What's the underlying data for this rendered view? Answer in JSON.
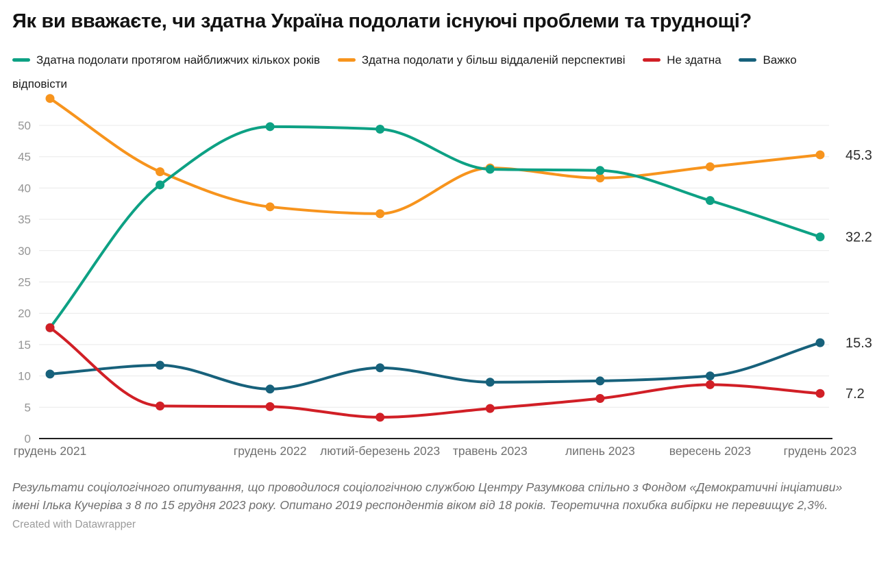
{
  "title": "Як ви вважаєте, чи здатна Україна подолати існуючі проблеми та труднощі?",
  "chart_data": {
    "type": "line",
    "categories": [
      "грудень 2021",
      "",
      "грудень 2022",
      "лютий-березень 2023",
      "травень 2023",
      "липень 2023",
      "вересень 2023",
      "грудень 2023"
    ],
    "series": [
      {
        "name": "Здатна подолати протягом найближчих кількох років",
        "color": "#0da184",
        "values": [
          17.7,
          40.5,
          49.8,
          49.4,
          43.0,
          42.8,
          38.0,
          32.2
        ],
        "end_label": "32.2"
      },
      {
        "name": "Здатна подолати у більш віддаленій перспективі",
        "color": "#f7941d",
        "values": [
          54.3,
          42.6,
          37.0,
          35.9,
          43.2,
          41.6,
          43.4,
          45.3
        ],
        "end_label": "45.3"
      },
      {
        "name": "Не здатна",
        "color": "#d11f26",
        "values": [
          17.7,
          5.2,
          5.1,
          3.4,
          4.8,
          6.4,
          8.6,
          7.2
        ],
        "end_label": "7.2"
      },
      {
        "name": "Важко відповісти",
        "color": "#17617b",
        "values": [
          10.3,
          11.7,
          7.9,
          11.3,
          9.0,
          9.2,
          10.0,
          15.3
        ],
        "end_label": "15.3"
      }
    ],
    "y_ticks": [
      0,
      5,
      10,
      15,
      20,
      25,
      30,
      35,
      40,
      45,
      50
    ],
    "ylim": [
      0,
      50
    ],
    "grid": true,
    "legend_position": "top",
    "xlabel": "",
    "ylabel": ""
  },
  "footer": {
    "note": "Результати соціологічного опитування, що проводилося соціологічною службою Центру Разумкова спільно з Фондом «Демократичні інціативи» імені Ілька Кучеріва з 8 по 15 грудня 2023 року. Опитано 2019 респондентів віком від 18 років. Теоретична похибка вибірки не перевищує 2,3%.",
    "attribution": "Created with Datawrapper"
  }
}
